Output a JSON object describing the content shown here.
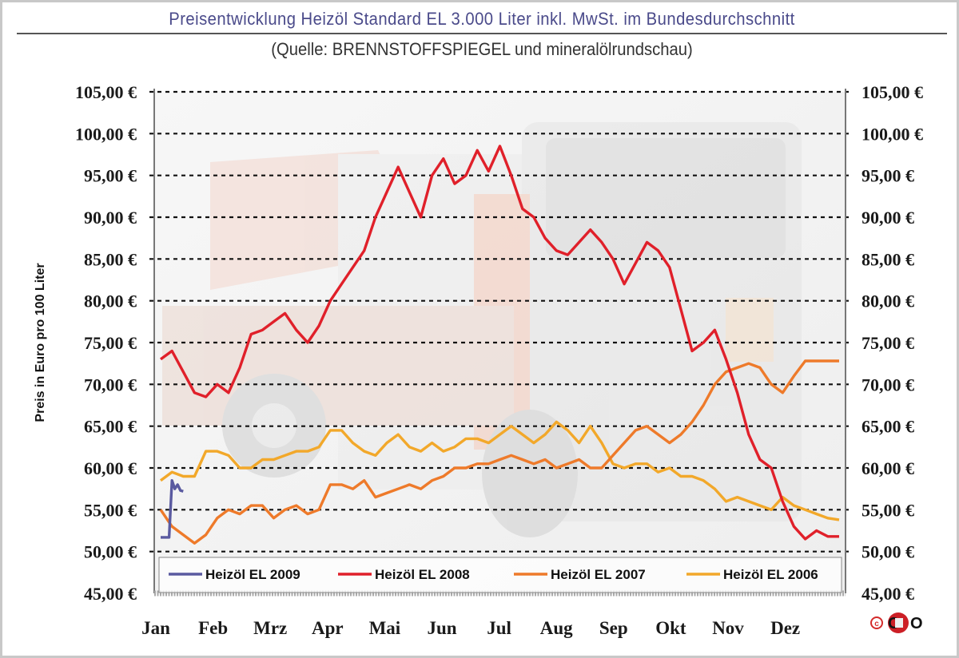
{
  "title": "Preisentwicklung Heizöl Standard EL 3.000 Liter inkl. MwSt. im Bundesdurchschnitt",
  "subtitle": "(Quelle: BRENNSTOFFSPIEGEL und mineralölrundschau)",
  "logo": {
    "copyright": "©",
    "text": "CETO",
    "icon": "ceto-logo-icon"
  },
  "colors": {
    "2009": "#5a5aa0",
    "2008": "#e0202a",
    "2007": "#ee7a2a",
    "2006": "#f2a82a",
    "grid": "#111111",
    "axis": "#777777"
  },
  "chart_data": {
    "type": "line",
    "title": "Preisentwicklung Heizöl Standard EL 3.000 Liter inkl. MwSt. im Bundesdurchschnitt",
    "subtitle": "(Quelle: BRENNSTOFFSPIEGEL und mineralölrundschau)",
    "xlabel": "",
    "ylabel": "Preis in Euro pro 100 Liter",
    "ylim": [
      45,
      105
    ],
    "y_ticks": [
      "45,00 €",
      "50,00 €",
      "55,00 €",
      "60,00 €",
      "65,00 €",
      "70,00 €",
      "75,00 €",
      "80,00 €",
      "85,00 €",
      "90,00 €",
      "95,00 €",
      "100,00 €",
      "105,00 €"
    ],
    "y_tick_values": [
      45,
      50,
      55,
      60,
      65,
      70,
      75,
      80,
      85,
      90,
      95,
      100,
      105
    ],
    "categories": [
      "Jan",
      "Feb",
      "Mrz",
      "Apr",
      "Mai",
      "Jun",
      "Jul",
      "Aug",
      "Sep",
      "Okt",
      "Nov",
      "Dez"
    ],
    "grid": "horizontal dotted",
    "legend_position": "bottom inside",
    "x_unit": "month index (0 = start Jan, 12 = end Dez)",
    "series": [
      {
        "name": "Heizöl EL 2009",
        "key": "2009",
        "x": [
          0,
          0.15,
          0.2,
          0.25,
          0.3,
          0.35,
          0.4
        ],
        "values": [
          51.7,
          51.7,
          58.5,
          57.5,
          58.0,
          57.3,
          57.2
        ]
      },
      {
        "name": "Heizöl EL 2008",
        "key": "2008",
        "x": [
          0,
          0.2,
          0.4,
          0.6,
          0.8,
          1.0,
          1.2,
          1.4,
          1.6,
          1.8,
          2.0,
          2.2,
          2.4,
          2.6,
          2.8,
          3.0,
          3.2,
          3.4,
          3.6,
          3.8,
          4.0,
          4.2,
          4.4,
          4.6,
          4.8,
          5.0,
          5.2,
          5.4,
          5.6,
          5.8,
          6.0,
          6.2,
          6.4,
          6.6,
          6.8,
          7.0,
          7.2,
          7.4,
          7.6,
          7.8,
          8.0,
          8.2,
          8.4,
          8.6,
          8.8,
          9.0,
          9.2,
          9.4,
          9.6,
          9.8,
          10.0,
          10.2,
          10.4,
          10.6,
          10.8,
          11.0,
          11.2,
          11.4,
          11.6,
          11.8,
          12.0
        ],
        "values": [
          73,
          74,
          71.5,
          69,
          68.5,
          70,
          69,
          72,
          76,
          76.5,
          77.5,
          78.5,
          76.5,
          75,
          77,
          80,
          82,
          84,
          86,
          90,
          93,
          96,
          93,
          90,
          95,
          97,
          94,
          95,
          98,
          95.5,
          98.5,
          95,
          91,
          90,
          87.5,
          86,
          85.5,
          87,
          88.5,
          87,
          85,
          82,
          84.5,
          87,
          86,
          84,
          79,
          74,
          75,
          76.5,
          73,
          69,
          64,
          61,
          60,
          56,
          53,
          51.5,
          52.5,
          51.8,
          51.8
        ]
      },
      {
        "name": "Heizöl EL 2007",
        "key": "2007",
        "x": [
          0,
          0.2,
          0.4,
          0.6,
          0.8,
          1.0,
          1.2,
          1.4,
          1.6,
          1.8,
          2.0,
          2.2,
          2.4,
          2.6,
          2.8,
          3.0,
          3.2,
          3.4,
          3.6,
          3.8,
          4.0,
          4.2,
          4.4,
          4.6,
          4.8,
          5.0,
          5.2,
          5.4,
          5.6,
          5.8,
          6.0,
          6.2,
          6.4,
          6.6,
          6.8,
          7.0,
          7.2,
          7.4,
          7.6,
          7.8,
          8.0,
          8.2,
          8.4,
          8.6,
          8.8,
          9.0,
          9.2,
          9.4,
          9.6,
          9.8,
          10.0,
          10.2,
          10.4,
          10.6,
          10.8,
          11.0,
          11.2,
          11.4,
          11.6,
          11.8,
          12.0
        ],
        "values": [
          55,
          53,
          52,
          51,
          52,
          54,
          55,
          54.5,
          55.5,
          55.5,
          54,
          55,
          55.5,
          54.5,
          55,
          58,
          58,
          57.5,
          58.5,
          56.5,
          57,
          57.5,
          58,
          57.5,
          58.5,
          59,
          60,
          60,
          60.5,
          60.5,
          61,
          61.5,
          61,
          60.5,
          61,
          60,
          60.5,
          61,
          60,
          60,
          61.5,
          63,
          64.5,
          65,
          64,
          63,
          64,
          65.5,
          67.5,
          70,
          71.5,
          72,
          72.5,
          72,
          70,
          69,
          71,
          72.8,
          72.8,
          72.8,
          72.8
        ]
      },
      {
        "name": "Heizöl EL 2006",
        "key": "2006",
        "x": [
          0,
          0.2,
          0.4,
          0.6,
          0.8,
          1.0,
          1.2,
          1.4,
          1.6,
          1.8,
          2.0,
          2.2,
          2.4,
          2.6,
          2.8,
          3.0,
          3.2,
          3.4,
          3.6,
          3.8,
          4.0,
          4.2,
          4.4,
          4.6,
          4.8,
          5.0,
          5.2,
          5.4,
          5.6,
          5.8,
          6.0,
          6.2,
          6.4,
          6.6,
          6.8,
          7.0,
          7.2,
          7.4,
          7.6,
          7.8,
          8.0,
          8.2,
          8.4,
          8.6,
          8.8,
          9.0,
          9.2,
          9.4,
          9.6,
          9.8,
          10.0,
          10.2,
          10.4,
          10.6,
          10.8,
          11.0,
          11.2,
          11.4,
          11.6,
          11.8,
          12.0
        ],
        "values": [
          58.5,
          59.5,
          59,
          59,
          62,
          62,
          61.5,
          60,
          60,
          61,
          61,
          61.5,
          62,
          62,
          62.5,
          64.5,
          64.5,
          63,
          62,
          61.5,
          63,
          64,
          62.5,
          62,
          63,
          62,
          62.5,
          63.5,
          63.5,
          63,
          64,
          65,
          64,
          63,
          64,
          65.5,
          64.5,
          63,
          65,
          63,
          60.5,
          60,
          60.5,
          60.5,
          59.5,
          60,
          59,
          59,
          58.5,
          57.5,
          56,
          56.5,
          56,
          55.5,
          55,
          56.5,
          55.5,
          55,
          54.5,
          54,
          53.8
        ]
      }
    ]
  }
}
